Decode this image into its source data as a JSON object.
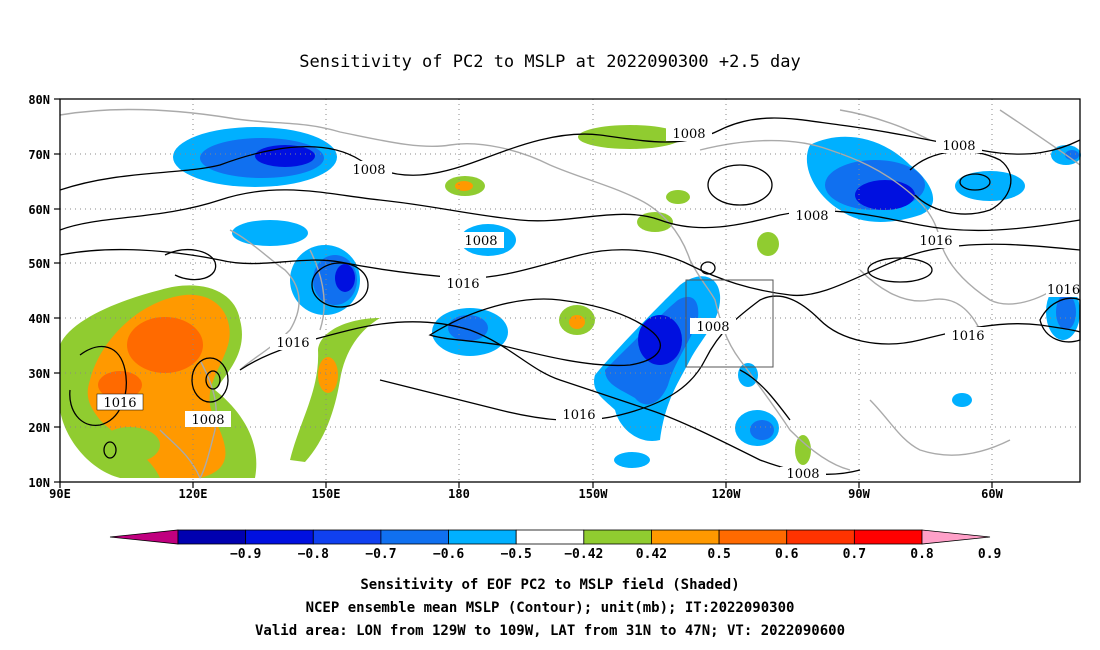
{
  "title": "Sensitivity of PC2 to MSLP at 2022090300 +2.5 day",
  "axes": {
    "x_ticks": [
      "90E",
      "120E",
      "150E",
      "180",
      "150W",
      "120W",
      "90W",
      "60W"
    ],
    "y_ticks": [
      "80N",
      "70N",
      "60N",
      "50N",
      "40N",
      "30N",
      "20N",
      "10N"
    ]
  },
  "contour_labels": [
    "1008",
    "1008",
    "1008",
    "1008",
    "1008",
    "1008",
    "1008",
    "1016",
    "1016",
    "1016",
    "1016",
    "1016",
    "1016",
    "1008"
  ],
  "colorbar": {
    "labels": [
      "-0.9",
      "-0.8",
      "-0.7",
      "-0.6",
      "-0.5",
      "-0.42",
      "0.42",
      "0.5",
      "0.6",
      "0.7",
      "0.8",
      "0.9"
    ],
    "colors": [
      "#c0007f",
      "#0000b0",
      "#0010e0",
      "#1040f0",
      "#1070f0",
      "#00b0ff",
      "#ffffff",
      "#90cc30",
      "#ff9900",
      "#ff6a00",
      "#ff3300",
      "#ff0000",
      "#ffa0c8"
    ]
  },
  "captions": {
    "line1": "Sensitivity of EOF PC2 to MSLP field (Shaded)",
    "line2": "NCEP ensemble mean MSLP (Contour); unit(mb); IT:2022090300",
    "line3": "Valid area: LON from 129W to 109W, LAT from 31N to 47N; VT: 2022090600"
  }
}
